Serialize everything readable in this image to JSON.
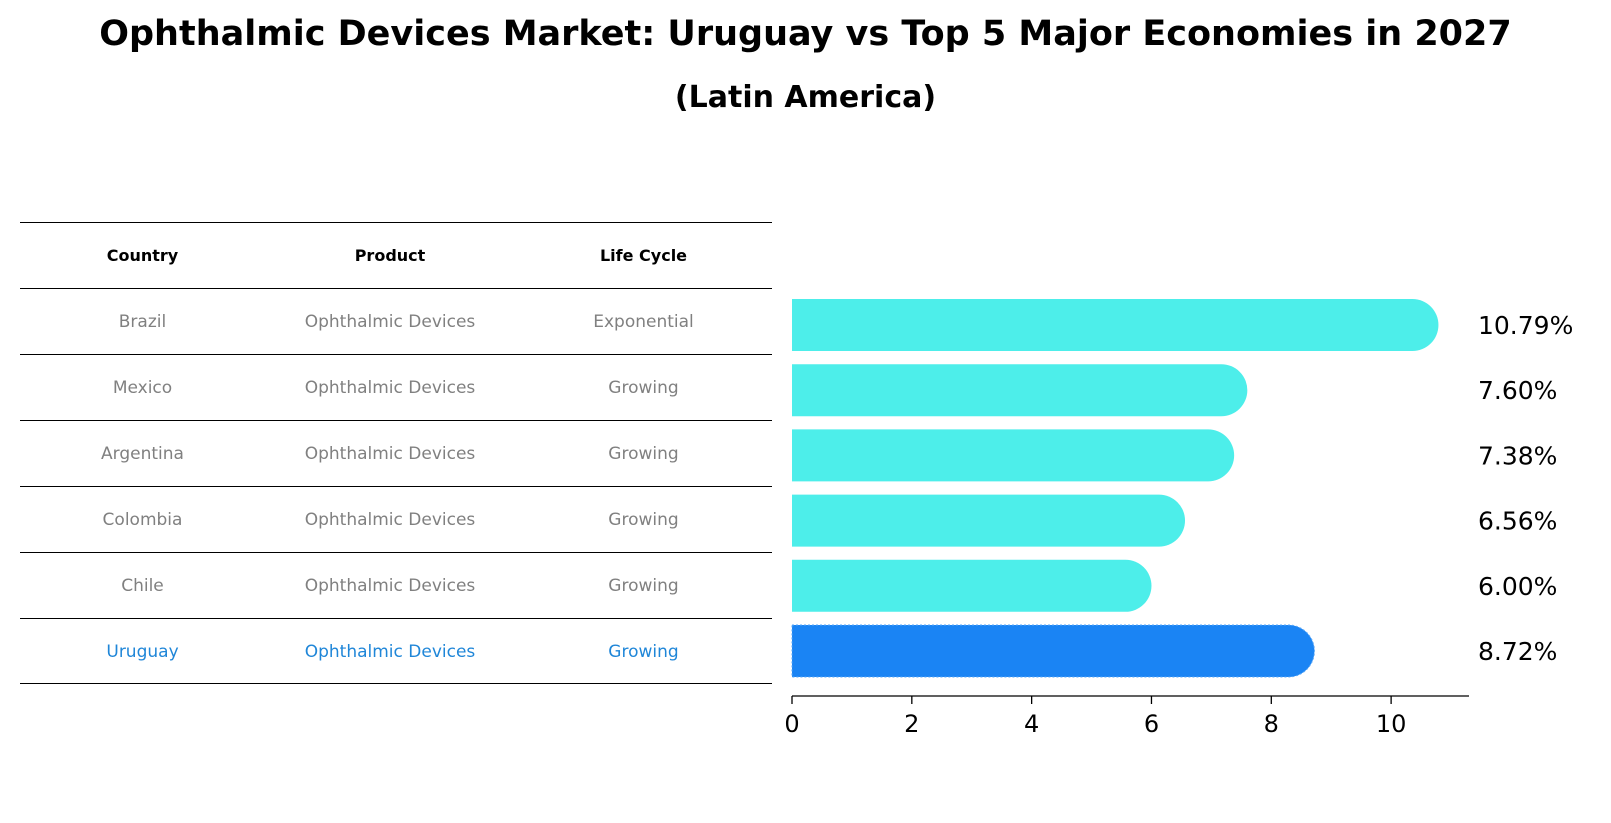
{
  "title": "Ophthalmic Devices Market: Uruguay vs Top 5 Major Economies in 2027",
  "subtitle": "(Latin America)",
  "table": {
    "headers": [
      "Country",
      "Product",
      "Life Cycle"
    ],
    "rows": [
      {
        "country": "Brazil",
        "product": "Ophthalmic Devices",
        "life_cycle": "Exponential"
      },
      {
        "country": "Mexico",
        "product": "Ophthalmic Devices",
        "life_cycle": "Growing"
      },
      {
        "country": "Argentina",
        "product": "Ophthalmic Devices",
        "life_cycle": "Growing"
      },
      {
        "country": "Colombia",
        "product": "Ophthalmic Devices",
        "life_cycle": "Growing"
      },
      {
        "country": "Chile",
        "product": "Ophthalmic Devices",
        "life_cycle": "Growing"
      },
      {
        "country": "Uruguay",
        "product": "Ophthalmic Devices",
        "life_cycle": "Growing"
      }
    ]
  },
  "colors": {
    "bar": "#4deeea",
    "highlight_bar": "#1a84f4",
    "highlight_text": "#1f86d8",
    "muted_text": "#808080"
  },
  "chart_data": {
    "type": "bar",
    "orientation": "horizontal",
    "categories": [
      "Brazil",
      "Mexico",
      "Argentina",
      "Colombia",
      "Chile",
      "Uruguay"
    ],
    "values": [
      10.79,
      7.6,
      7.38,
      6.56,
      6.0,
      8.72
    ],
    "value_labels": [
      "10.79%",
      "7.60%",
      "7.38%",
      "6.56%",
      "6.00%",
      "8.72%"
    ],
    "highlight": "Uruguay",
    "xlim": [
      0,
      11.3
    ],
    "xticks": [
      0,
      2,
      4,
      6,
      8,
      10
    ],
    "xlabel": "",
    "ylabel": ""
  }
}
